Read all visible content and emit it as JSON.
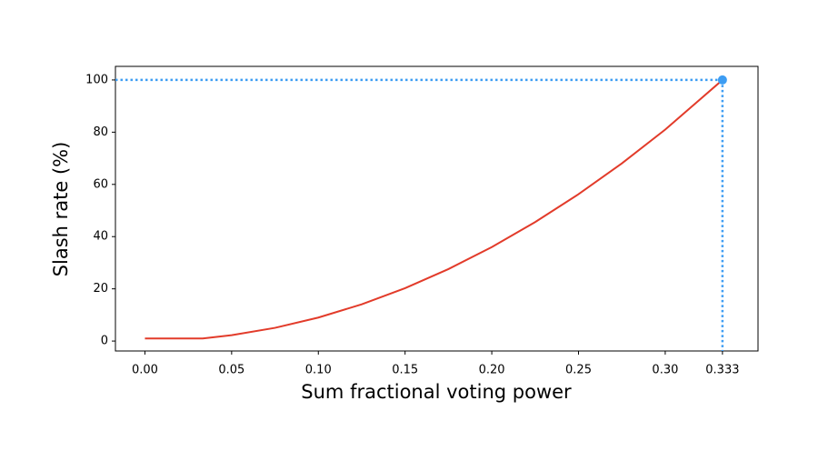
{
  "chart_data": {
    "type": "line",
    "xlabel": "Sum fractional voting power",
    "ylabel": "Slash rate (%)",
    "series": [
      {
        "color": "#e23b2a",
        "x": [
          0,
          0.0333,
          0.05,
          0.075,
          0.1,
          0.125,
          0.15,
          0.175,
          0.2,
          0.225,
          0.25,
          0.275,
          0.3,
          0.333
        ],
        "values": [
          1,
          1,
          2.25,
          5.06,
          9,
          14.06,
          20.25,
          27.56,
          36,
          45.56,
          56.25,
          68.06,
          81,
          100
        ]
      }
    ],
    "marker": {
      "x": 0.333,
      "y": 100,
      "color": "#3d9df3"
    },
    "xlim": [
      -0.017,
      0.3535
    ],
    "ylim": [
      -3.8,
      105.2
    ],
    "xticks": [
      {
        "value": 0,
        "label": "0.00"
      },
      0.05,
      {
        "value": 0.1,
        "label": "0.10"
      },
      0.15,
      {
        "value": 0.2,
        "label": "0.20"
      },
      0.25,
      {
        "value": 0.3,
        "label": "0.30"
      },
      0.333
    ],
    "yticks": [
      0,
      20,
      40,
      60,
      80,
      100
    ]
  }
}
